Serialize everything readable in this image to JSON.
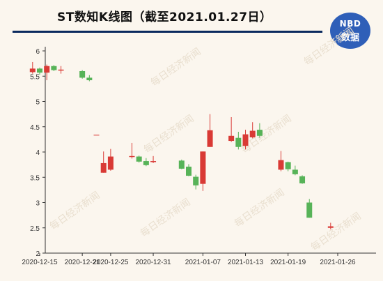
{
  "header": {
    "title": "ST数知K线图（截至2021.01.27日）",
    "logo_top": "NBD",
    "logo_bottom": "数据"
  },
  "watermark": "每日经济新闻",
  "colors": {
    "up": "#d93a35",
    "down": "#57b358",
    "axis": "#333333",
    "title_rule": "#0a2a5e",
    "logo_bg": "#2f5fb8",
    "background": "#fbf6ee"
  },
  "chart_data": {
    "type": "candlestick",
    "title": "ST数知K线图（截至2021.01.27日）",
    "xlabel": "",
    "ylabel": "",
    "ylim": [
      2,
      6
    ],
    "y_ticks": [
      "2",
      "2.5",
      "3",
      "3.5",
      "4",
      "4.5",
      "5",
      "5.5",
      "6"
    ],
    "x_tick_labels": [
      {
        "date": "2020-12-15",
        "label": "2020-12-15"
      },
      {
        "date": "2020-12-21",
        "label": "2020-12-21"
      },
      {
        "date": "2020-12-25",
        "label": "2020-12-25"
      },
      {
        "date": "2020-12-31",
        "label": "2020-12-31"
      },
      {
        "date": "2021-01-07",
        "label": "2021-01-07"
      },
      {
        "date": "2021-01-13",
        "label": "2021-01-13"
      },
      {
        "date": "2021-01-19",
        "label": "2021-01-19"
      },
      {
        "date": "2021-01-26",
        "label": "2021-01-26"
      }
    ],
    "grid": false,
    "series": [
      {
        "date": "2020-12-14",
        "open": 5.58,
        "close": 5.65,
        "high": 5.78,
        "low": 5.55
      },
      {
        "date": "2020-12-15",
        "open": 5.65,
        "close": 5.57,
        "high": 5.67,
        "low": 5.53
      },
      {
        "date": "2020-12-16",
        "open": 5.57,
        "close": 5.7,
        "high": 5.73,
        "low": 5.42
      },
      {
        "date": "2020-12-17",
        "open": 5.7,
        "close": 5.62,
        "high": 5.72,
        "low": 5.6
      },
      {
        "date": "2020-12-18",
        "open": 5.61,
        "close": 5.63,
        "high": 5.7,
        "low": 5.55
      },
      {
        "date": "2020-12-21",
        "open": 5.6,
        "close": 5.47,
        "high": 5.62,
        "low": 5.45
      },
      {
        "date": "2020-12-22",
        "open": 5.47,
        "close": 5.42,
        "high": 5.52,
        "low": 5.4
      },
      {
        "date": "2020-12-23",
        "open": 4.34,
        "close": 4.34,
        "high": 4.34,
        "low": 4.34
      },
      {
        "date": "2020-12-24",
        "open": 3.59,
        "close": 3.78,
        "high": 4.01,
        "low": 3.59
      },
      {
        "date": "2020-12-25",
        "open": 3.65,
        "close": 3.91,
        "high": 4.06,
        "low": 3.63
      },
      {
        "date": "2020-12-28",
        "open": 3.9,
        "close": 3.92,
        "high": 4.18,
        "low": 3.87
      },
      {
        "date": "2020-12-29",
        "open": 3.91,
        "close": 3.81,
        "high": 3.93,
        "low": 3.79
      },
      {
        "date": "2020-12-30",
        "open": 3.82,
        "close": 3.74,
        "high": 3.88,
        "low": 3.72
      },
      {
        "date": "2020-12-31",
        "open": 3.8,
        "close": 3.82,
        "high": 3.92,
        "low": 3.78
      },
      {
        "date": "2021-01-04",
        "open": 3.83,
        "close": 3.67,
        "high": 3.85,
        "low": 3.66
      },
      {
        "date": "2021-01-05",
        "open": 3.71,
        "close": 3.53,
        "high": 3.76,
        "low": 3.52
      },
      {
        "date": "2021-01-06",
        "open": 3.51,
        "close": 3.34,
        "high": 3.55,
        "low": 3.26
      },
      {
        "date": "2021-01-07",
        "open": 3.37,
        "close": 4.01,
        "high": 4.01,
        "low": 3.23
      },
      {
        "date": "2021-01-08",
        "open": 4.1,
        "close": 4.43,
        "high": 4.75,
        "low": 4.1
      },
      {
        "date": "2021-01-11",
        "open": 4.22,
        "close": 4.32,
        "high": 4.69,
        "low": 4.2
      },
      {
        "date": "2021-01-12",
        "open": 4.28,
        "close": 4.1,
        "high": 4.4,
        "low": 4.05
      },
      {
        "date": "2021-01-13",
        "open": 4.12,
        "close": 4.35,
        "high": 4.44,
        "low": 4.05
      },
      {
        "date": "2021-01-14",
        "open": 4.29,
        "close": 4.42,
        "high": 4.59,
        "low": 4.27
      },
      {
        "date": "2021-01-15",
        "open": 4.44,
        "close": 4.32,
        "high": 4.57,
        "low": 4.28
      },
      {
        "date": "2021-01-18",
        "open": 3.65,
        "close": 3.84,
        "high": 4.02,
        "low": 3.62
      },
      {
        "date": "2021-01-19",
        "open": 3.8,
        "close": 3.66,
        "high": 3.81,
        "low": 3.62
      },
      {
        "date": "2021-01-20",
        "open": 3.65,
        "close": 3.56,
        "high": 3.73,
        "low": 3.54
      },
      {
        "date": "2021-01-21",
        "open": 3.52,
        "close": 3.38,
        "high": 3.54,
        "low": 3.37
      },
      {
        "date": "2021-01-22",
        "open": 3.0,
        "close": 2.7,
        "high": 3.07,
        "low": 2.7
      },
      {
        "date": "2021-01-25",
        "open": 2.5,
        "close": 2.53,
        "high": 2.6,
        "low": 2.47
      }
    ]
  }
}
